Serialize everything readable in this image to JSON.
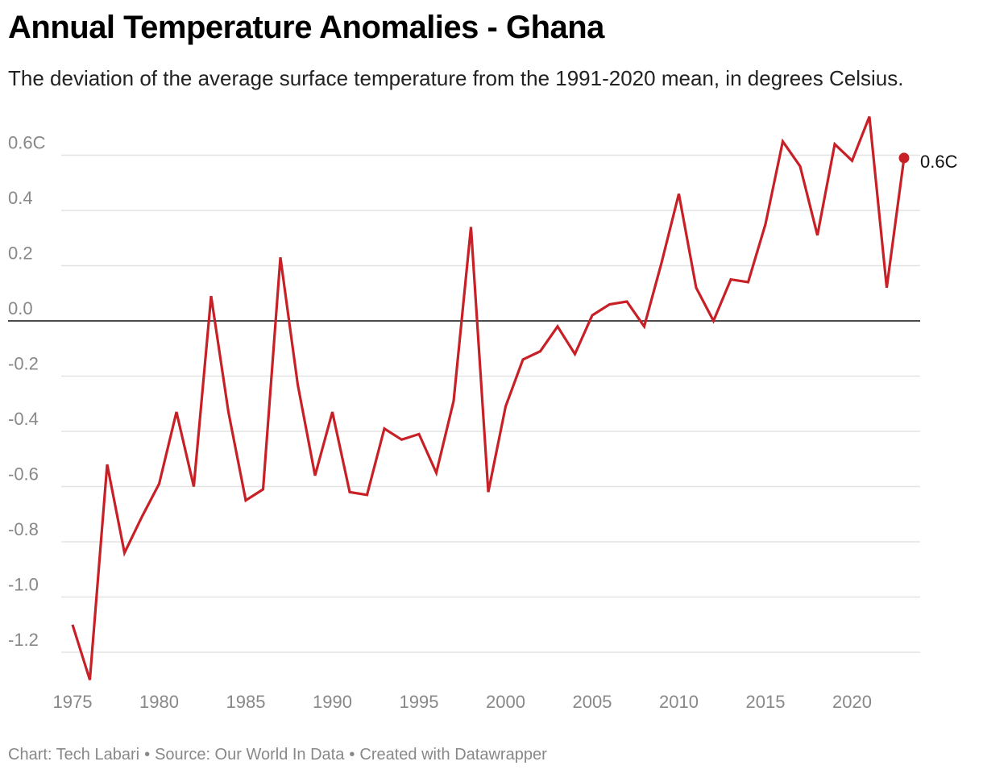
{
  "title": "Annual Temperature Anomalies - Ghana",
  "subtitle": "The deviation of the average surface temperature from the 1991-2020 mean, in degrees Celsius.",
  "footer": {
    "chart": "Chart: Tech Labari",
    "source": "Source: Our World In Data",
    "tool": "Created with Datawrapper",
    "separator": "•"
  },
  "colors": {
    "line": "#c82027",
    "grid": "#e3e3e3",
    "zero_line": "#111111",
    "axis_text": "#888888"
  },
  "chart_data": {
    "type": "line",
    "title": "Annual Temperature Anomalies - Ghana",
    "xlabel": "",
    "ylabel": "",
    "x": [
      1975,
      1976,
      1977,
      1978,
      1979,
      1980,
      1981,
      1982,
      1983,
      1984,
      1985,
      1986,
      1987,
      1988,
      1989,
      1990,
      1991,
      1992,
      1993,
      1994,
      1995,
      1996,
      1997,
      1998,
      1999,
      2000,
      2001,
      2002,
      2003,
      2004,
      2005,
      2006,
      2007,
      2008,
      2009,
      2010,
      2011,
      2012,
      2013,
      2014,
      2015,
      2016,
      2017,
      2018,
      2019,
      2020,
      2021,
      2022,
      2023
    ],
    "series": [
      {
        "name": "Ghana",
        "values": [
          -1.1,
          -1.3,
          -0.52,
          -0.84,
          -0.71,
          -0.59,
          -0.33,
          -0.6,
          0.09,
          -0.33,
          -0.65,
          -0.61,
          0.23,
          -0.23,
          -0.56,
          -0.33,
          -0.62,
          -0.63,
          -0.39,
          -0.43,
          -0.41,
          -0.55,
          -0.29,
          0.34,
          -0.62,
          -0.31,
          -0.14,
          -0.11,
          -0.02,
          -0.12,
          0.02,
          0.06,
          0.07,
          -0.02,
          0.21,
          0.46,
          0.12,
          0.0,
          0.15,
          0.14,
          0.35,
          0.65,
          0.56,
          0.31,
          0.64,
          0.58,
          0.74,
          0.12,
          0.59
        ]
      }
    ],
    "y_ticks": [
      0.6,
      0.4,
      0.2,
      0.0,
      -0.2,
      -0.4,
      -0.6,
      -0.8,
      -1.0,
      -1.2
    ],
    "y_tick_labels": [
      "0.6C",
      "0.4",
      "0.2",
      "0.0",
      "-0.2",
      "-0.4",
      "-0.6",
      "-0.8",
      "-1.0",
      "-1.2"
    ],
    "x_ticks": [
      1975,
      1980,
      1985,
      1990,
      1995,
      2000,
      2005,
      2010,
      2015,
      2020
    ],
    "x_tick_labels": [
      "1975",
      "1980",
      "1985",
      "1990",
      "1995",
      "2000",
      "2005",
      "2010",
      "2015",
      "2020"
    ],
    "ylim": [
      -1.3,
      0.75
    ],
    "xlim": [
      1975,
      2023
    ],
    "end_label": "0.6C",
    "grid": true,
    "legend": "none"
  }
}
